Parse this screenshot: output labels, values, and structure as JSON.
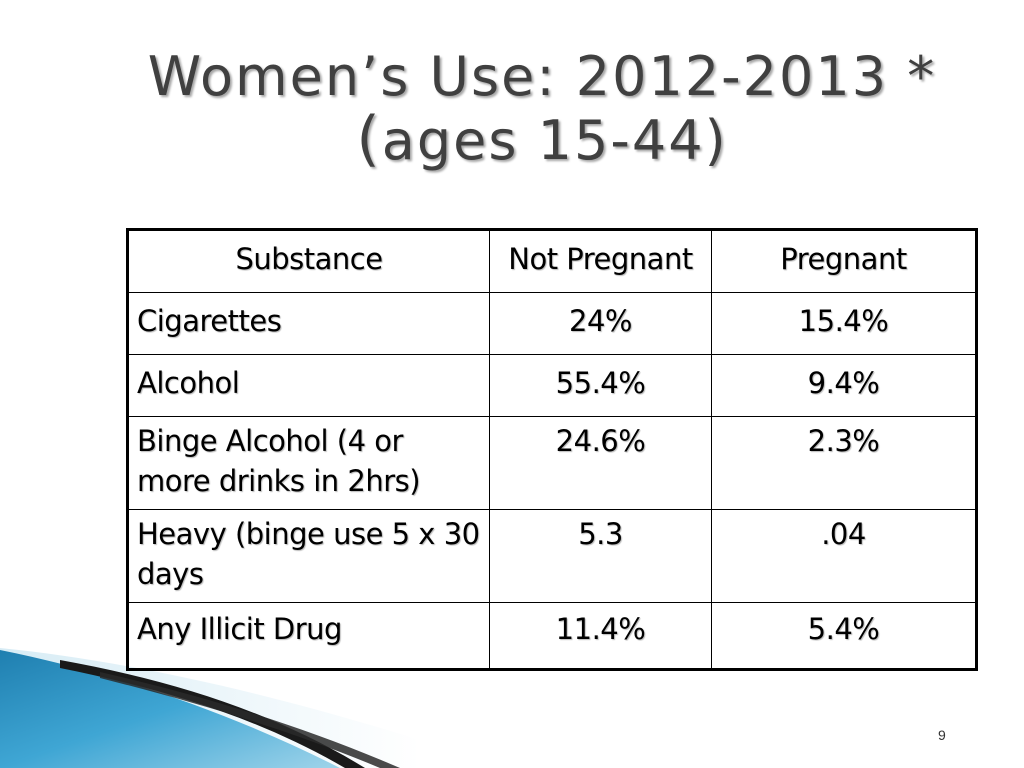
{
  "slide": {
    "title_line1": "Women’s Use: 2012-2013 *",
    "title_paren": "(",
    "title_line2": "ages 15-44)",
    "page_number": "9"
  },
  "table": {
    "headers": [
      "Substance",
      "Not Pregnant",
      "Pregnant"
    ],
    "rows": [
      [
        "Cigarettes",
        "24%",
        "15.4%"
      ],
      [
        "Alcohol",
        "55.4%",
        "9.4%"
      ],
      [
        "Binge Alcohol (4 or more drinks in 2hrs)",
        "24.6%",
        "2.3%"
      ],
      [
        "Heavy (binge use 5 x 30 days",
        "5.3",
        ".04"
      ],
      [
        "Any Illicit Drug",
        "11.4%",
        "5.4%"
      ]
    ]
  },
  "colors": {
    "title_text": "#404040",
    "swoosh_blue": "#3a9cc9",
    "swoosh_dark": "#1a1a1a"
  }
}
